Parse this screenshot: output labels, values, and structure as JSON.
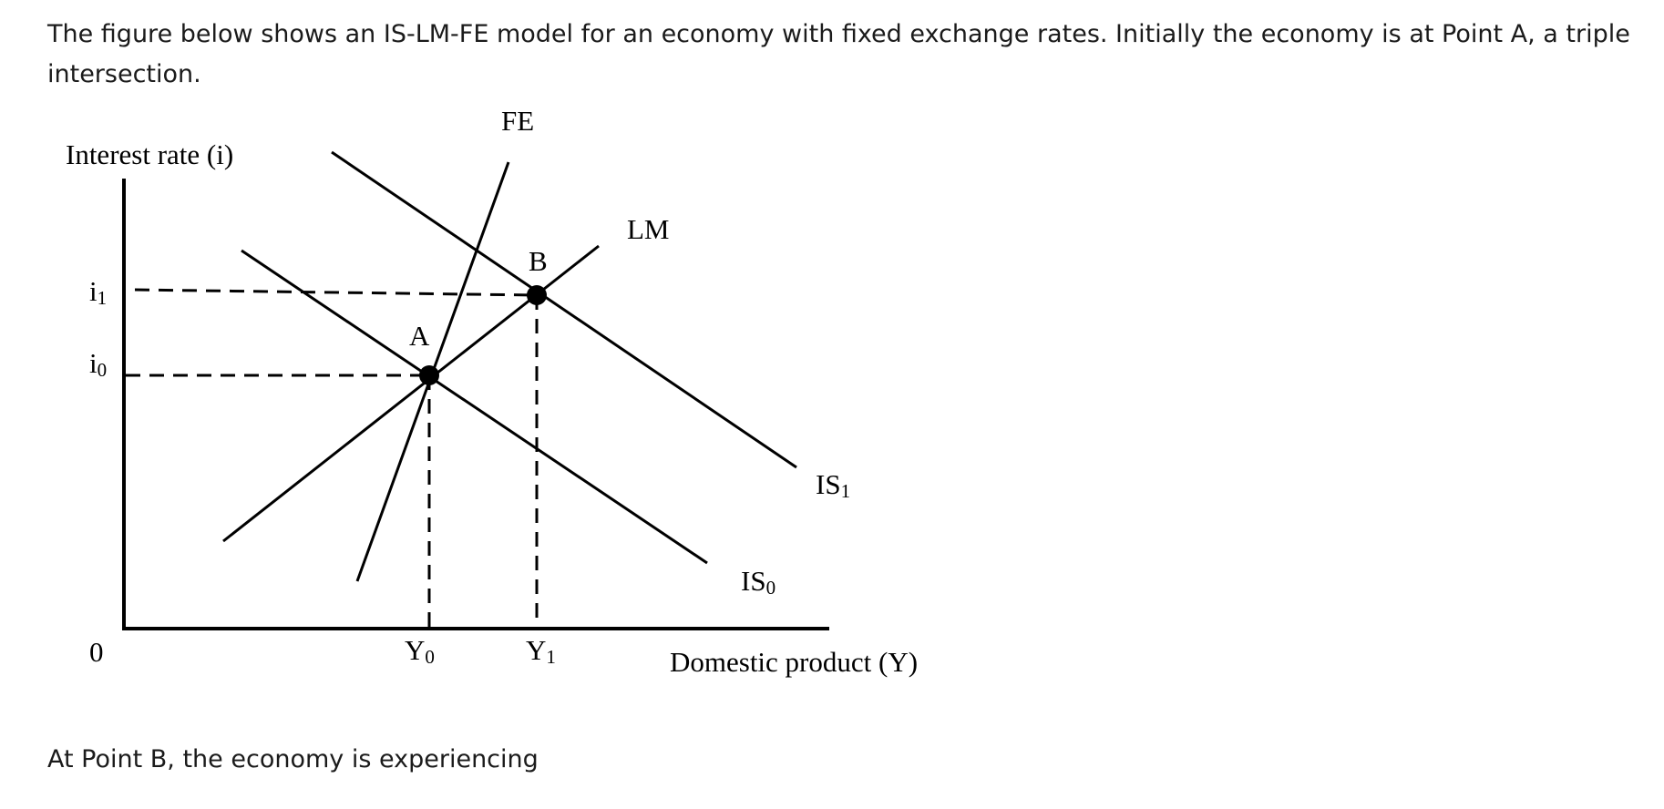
{
  "intro_text": "The figure below shows an IS-LM-FE model for an economy with fixed exchange rates. Initially the economy is at Point A, a triple intersection.",
  "question_text": "At Point B, the economy is experiencing",
  "diagram": {
    "y_axis_label": "Interest rate (i)",
    "x_axis_label": "Domestic product (Y)",
    "origin_label": "0",
    "fe_label": "FE",
    "lm_label": "LM",
    "is0_label": {
      "main": "IS",
      "sub": "0"
    },
    "is1_label": {
      "main": "IS",
      "sub": "1"
    },
    "point_a_label": "A",
    "point_b_label": "B",
    "i0_label": {
      "main": "i",
      "sub": "0"
    },
    "i1_label": {
      "main": "i",
      "sub": "1"
    },
    "y0_label": {
      "main": "Y",
      "sub": "0"
    },
    "y1_label": {
      "main": "Y",
      "sub": "1"
    }
  }
}
